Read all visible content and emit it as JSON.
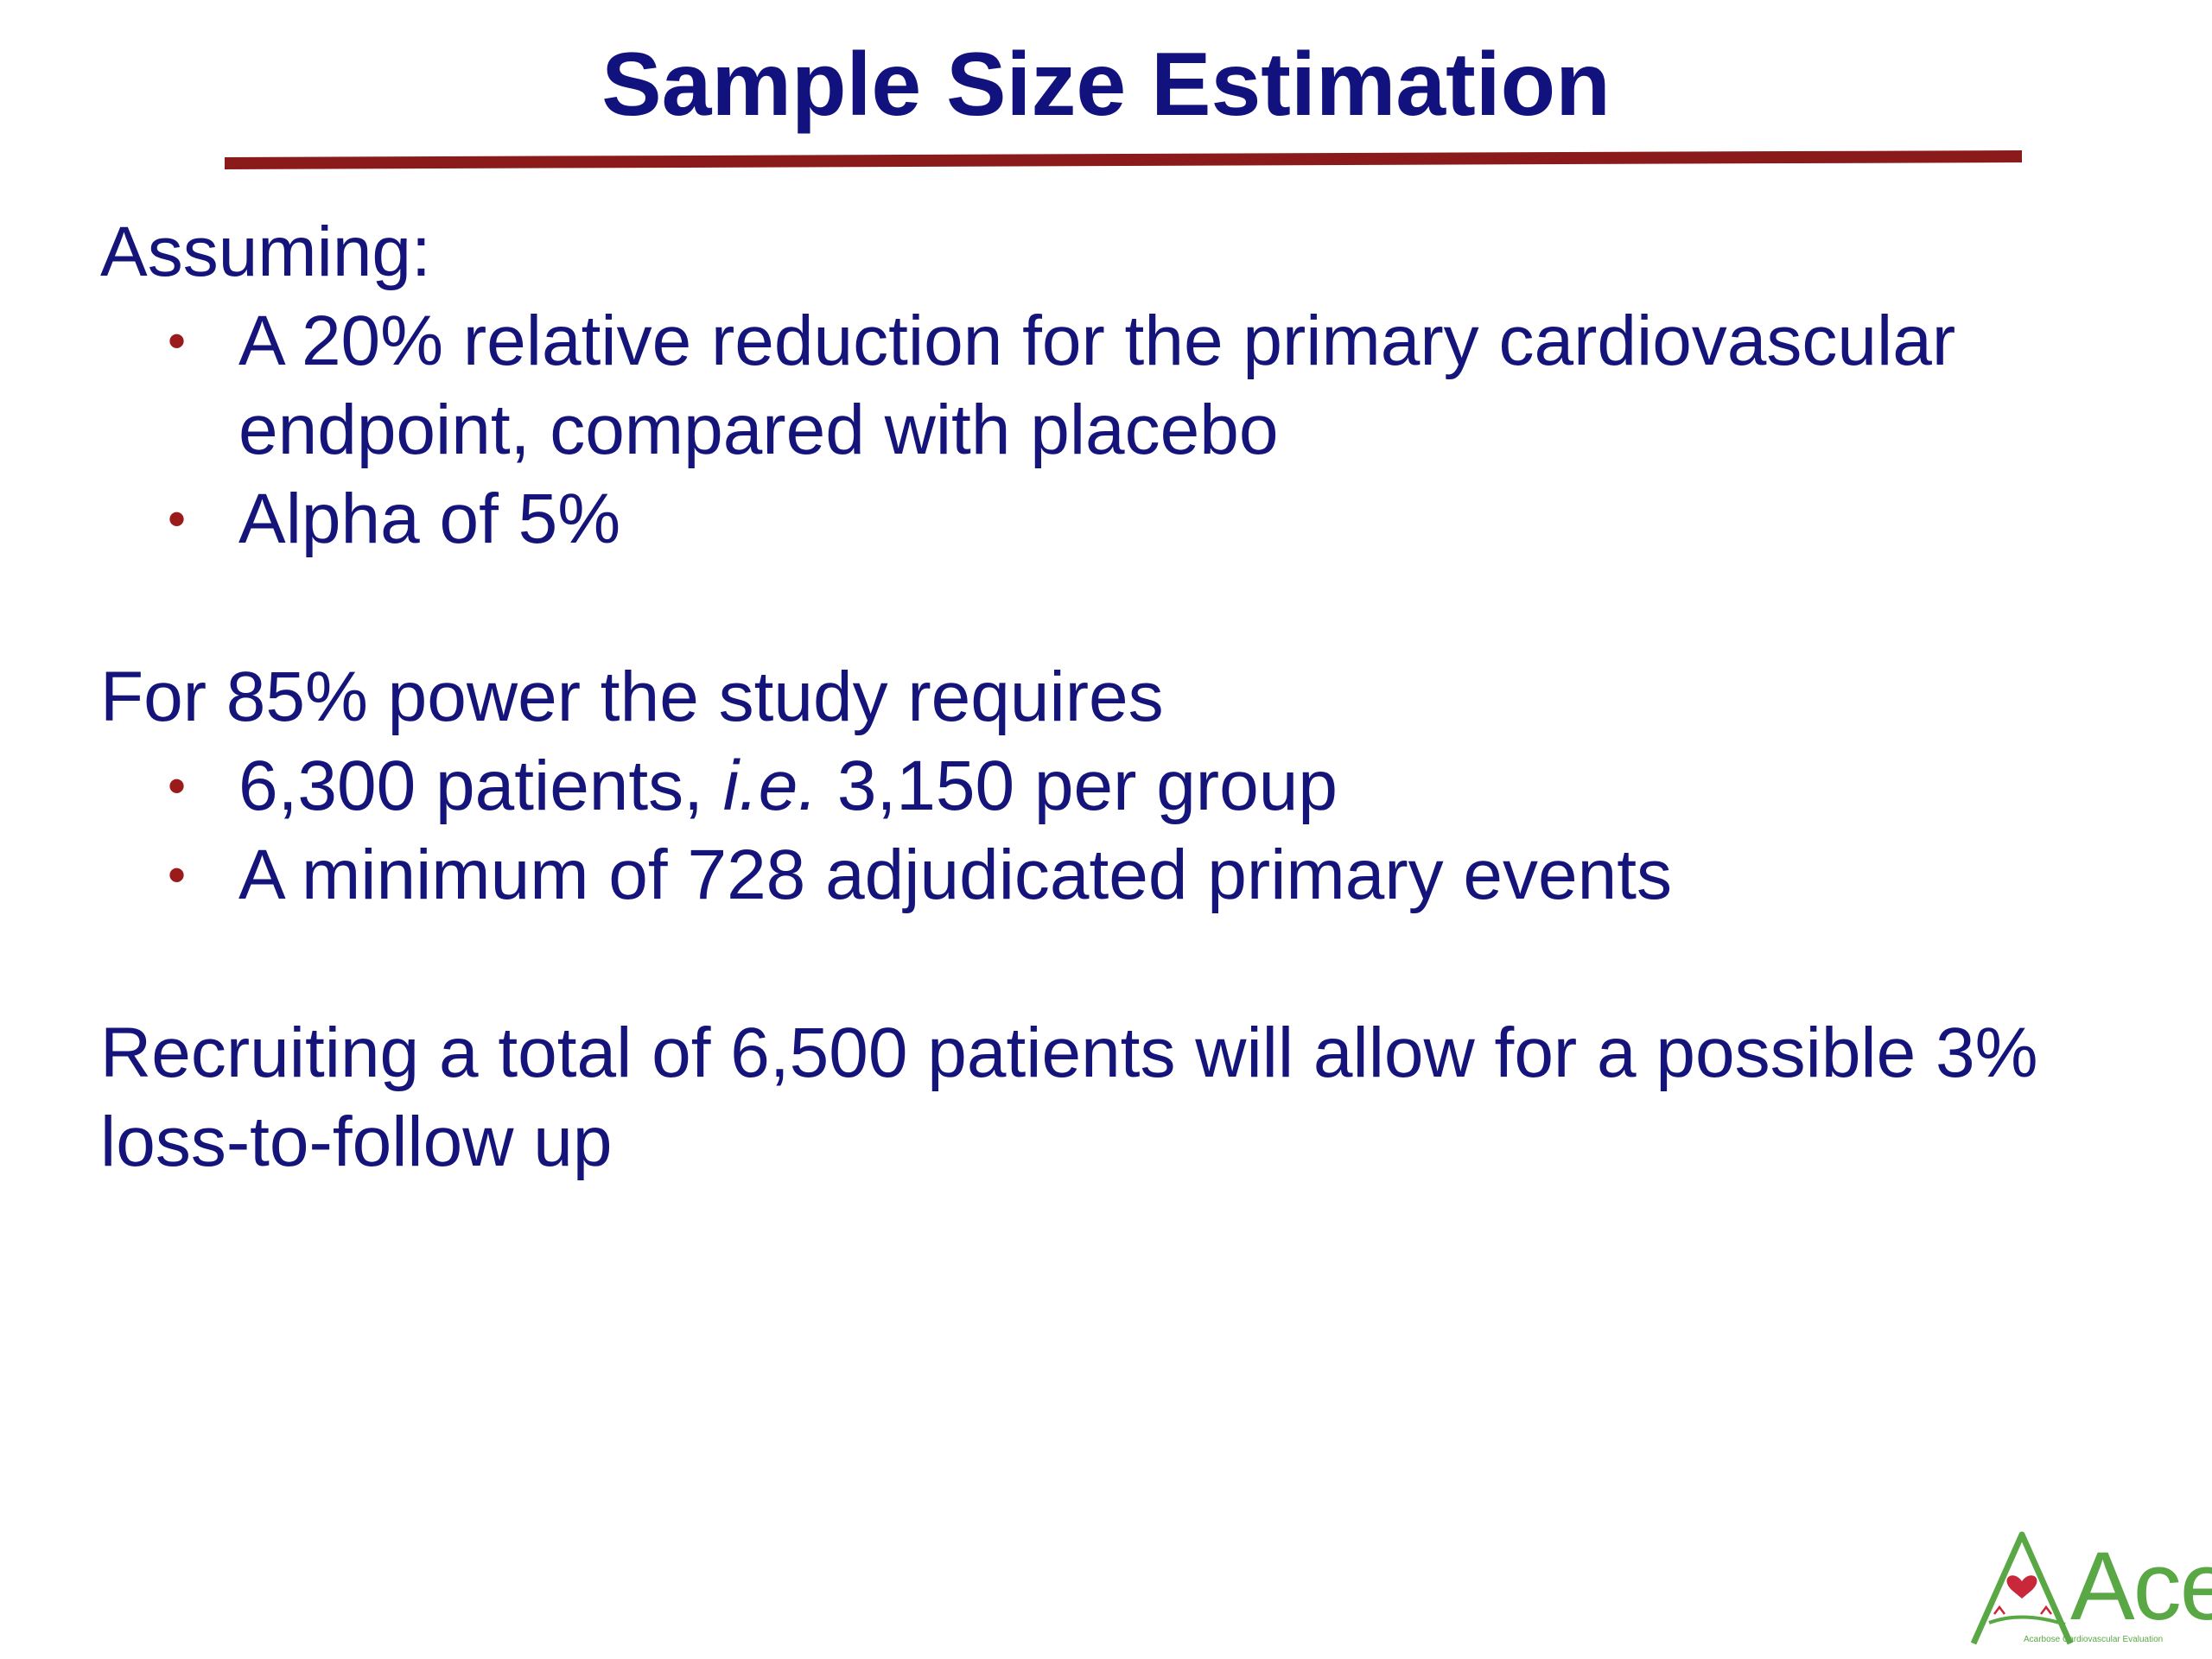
{
  "slide": {
    "title": "Sample Size Estimation",
    "sections": [
      {
        "heading": "Assuming:",
        "bullets": [
          "A 20% relative reduction for the primary cardiovascular endpoint, compared with placebo",
          "Alpha of 5%"
        ]
      },
      {
        "heading": "For 85% power the study requires",
        "bullets": [
          {
            "before": "6,300 patients, ",
            "italic": "i.e.",
            "after": " 3,150 per group"
          },
          "A minimum of 728 adjudicated primary events"
        ]
      }
    ],
    "closing": "Recruiting a total of 6,500 patients will allow for a possible 3% loss-to-follow up"
  },
  "logo": {
    "text": "Ace",
    "subtitle": "Acarbose Cardiovascular Evaluation"
  },
  "colors": {
    "title": "#12127e",
    "body": "#14147a",
    "rule": "#8b1a1a",
    "bullet": "#9b1b1b",
    "logo_green": "#5aa845",
    "logo_heart": "#c8283a"
  }
}
